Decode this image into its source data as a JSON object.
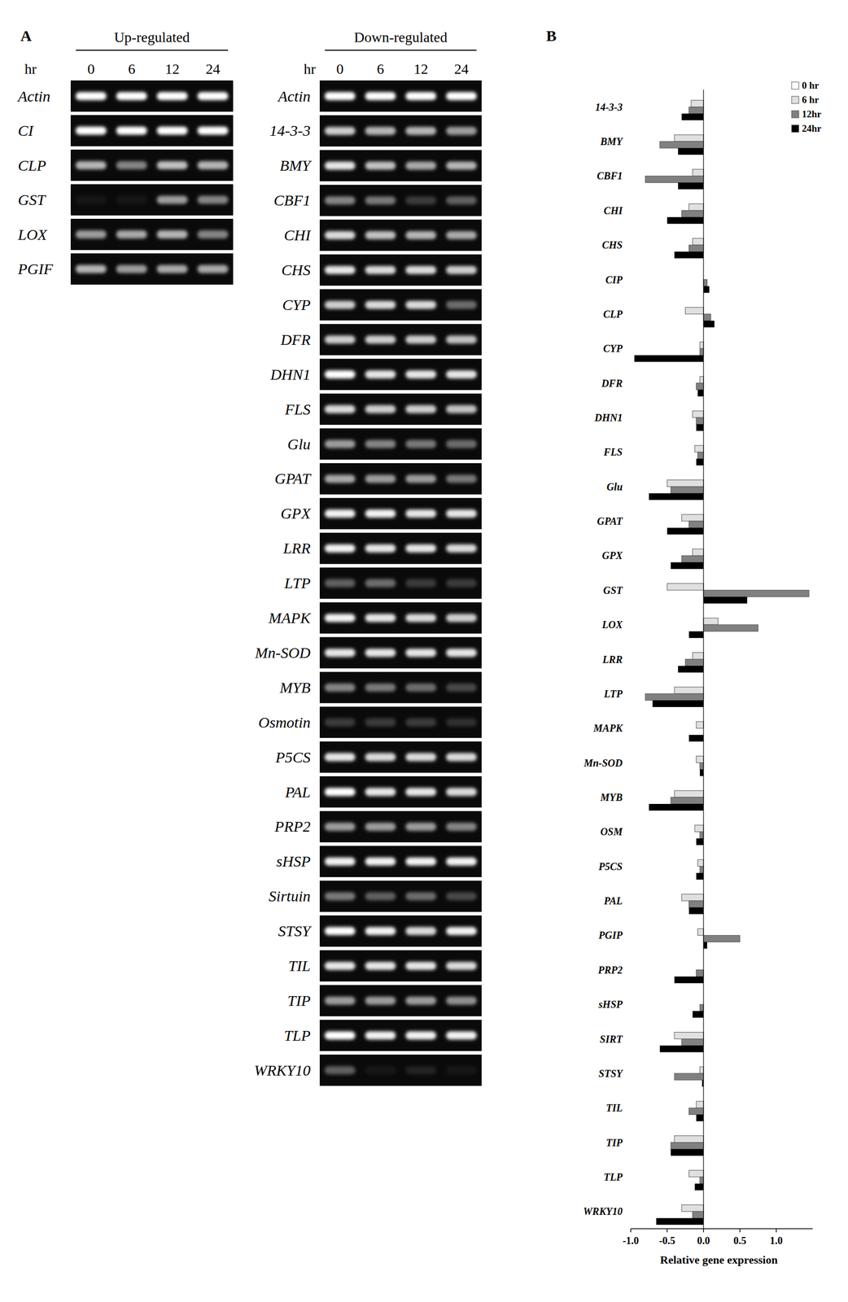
{
  "panel_a": {
    "letter": "A",
    "time_unit": "hr",
    "times": [
      0,
      6,
      12,
      24
    ],
    "groups": [
      {
        "title": "Up-regulated",
        "rows": [
          {
            "gene": "Actin",
            "bands": [
              1,
              1,
              1,
              1
            ]
          },
          {
            "gene": "CI",
            "bands": [
              1,
              1,
              1,
              1
            ]
          },
          {
            "gene": "CLP",
            "bands": [
              0.7,
              0.5,
              0.75,
              0.7
            ]
          },
          {
            "gene": "GST",
            "bands": [
              0.05,
              0.05,
              0.6,
              0.5
            ]
          },
          {
            "gene": "LOX",
            "bands": [
              0.6,
              0.65,
              0.7,
              0.5
            ]
          },
          {
            "gene": "PGIF",
            "bands": [
              0.7,
              0.6,
              0.65,
              0.65
            ]
          }
        ]
      },
      {
        "title": "Down-regulated",
        "rows": [
          {
            "gene": "Actin",
            "bands": [
              1,
              1,
              1,
              1
            ]
          },
          {
            "gene": "14-3-3",
            "bands": [
              0.8,
              0.7,
              0.7,
              0.6
            ]
          },
          {
            "gene": "BMY",
            "bands": [
              0.9,
              0.75,
              0.65,
              0.7
            ]
          },
          {
            "gene": "CBF1",
            "bands": [
              0.5,
              0.45,
              0.2,
              0.35
            ]
          },
          {
            "gene": "CHI",
            "bands": [
              0.85,
              0.75,
              0.7,
              0.65
            ]
          },
          {
            "gene": "CHS",
            "bands": [
              0.9,
              0.85,
              0.85,
              0.8
            ]
          },
          {
            "gene": "CYP",
            "bands": [
              0.8,
              0.85,
              0.85,
              0.4
            ]
          },
          {
            "gene": "DFR",
            "bands": [
              0.8,
              0.8,
              0.8,
              0.75
            ]
          },
          {
            "gene": "DHN1",
            "bands": [
              1,
              0.9,
              0.9,
              0.9
            ]
          },
          {
            "gene": "FLS",
            "bands": [
              0.85,
              0.8,
              0.8,
              0.75
            ]
          },
          {
            "gene": "Glu",
            "bands": [
              0.6,
              0.5,
              0.45,
              0.4
            ]
          },
          {
            "gene": "GPAT",
            "bands": [
              0.65,
              0.6,
              0.6,
              0.45
            ]
          },
          {
            "gene": "GPX",
            "bands": [
              0.95,
              0.95,
              0.9,
              0.9
            ]
          },
          {
            "gene": "LRR",
            "bands": [
              0.95,
              0.9,
              0.9,
              0.85
            ]
          },
          {
            "gene": "LTP",
            "bands": [
              0.35,
              0.4,
              0.2,
              0.2
            ]
          },
          {
            "gene": "MAPK",
            "bands": [
              0.95,
              0.9,
              0.85,
              0.8
            ]
          },
          {
            "gene": "Mn-SOD",
            "bands": [
              0.9,
              0.9,
              0.9,
              0.9
            ]
          },
          {
            "gene": "MYB",
            "bands": [
              0.5,
              0.45,
              0.4,
              0.25
            ]
          },
          {
            "gene": "Osmotin",
            "bands": [
              0.2,
              0.2,
              0.2,
              0.15
            ]
          },
          {
            "gene": "P5CS",
            "bands": [
              0.9,
              0.85,
              0.85,
              0.85
            ]
          },
          {
            "gene": "PAL",
            "bands": [
              1,
              0.9,
              0.9,
              0.85
            ]
          },
          {
            "gene": "PRP2",
            "bands": [
              0.6,
              0.6,
              0.6,
              0.5
            ]
          },
          {
            "gene": "sHSP",
            "bands": [
              0.95,
              0.95,
              0.95,
              0.95
            ]
          },
          {
            "gene": "Sirtuin",
            "bands": [
              0.45,
              0.35,
              0.4,
              0.25
            ]
          },
          {
            "gene": "STSY",
            "bands": [
              1,
              0.95,
              0.85,
              0.95
            ]
          },
          {
            "gene": "TIL",
            "bands": [
              0.9,
              0.9,
              0.9,
              0.85
            ]
          },
          {
            "gene": "TIP",
            "bands": [
              0.6,
              0.6,
              0.6,
              0.55
            ]
          },
          {
            "gene": "TLP",
            "bands": [
              1,
              0.95,
              0.95,
              0.95
            ]
          },
          {
            "gene": "WRKY10",
            "bands": [
              0.35,
              0.05,
              0.1,
              0.05
            ]
          }
        ]
      }
    ]
  },
  "panel_b": {
    "letter": "B"
  },
  "chart_data": {
    "type": "bar",
    "orientation": "horizontal",
    "categories": [
      "14-3-3",
      "BMY",
      "CBF1",
      "CHI",
      "CHS",
      "CIP",
      "CLP",
      "CYP",
      "DFR",
      "DHN1",
      "FLS",
      "Glu",
      "GPAT",
      "GPX",
      "GST",
      "LOX",
      "LRR",
      "LTP",
      "MAPK",
      "Mn-SOD",
      "MYB",
      "OSM",
      "P5CS",
      "PAL",
      "PGIP",
      "PRP2",
      "sHSP",
      "SIRT",
      "STSY",
      "TIL",
      "TIP",
      "TLP",
      "WRKY10"
    ],
    "series": [
      {
        "name": "0 hr",
        "color": "#ffffff",
        "values": [
          0,
          0,
          0,
          0,
          0,
          0,
          0,
          0,
          0,
          0,
          0,
          0,
          0,
          0,
          0,
          0,
          0,
          0,
          0,
          0,
          0,
          0,
          0,
          0,
          0,
          0,
          0,
          0,
          0,
          0,
          0,
          0,
          0
        ]
      },
      {
        "name": "6 hr",
        "color": "#e0e0e0",
        "values": [
          -0.17,
          -0.4,
          -0.15,
          -0.2,
          -0.15,
          0,
          -0.25,
          -0.05,
          -0.05,
          -0.15,
          -0.12,
          -0.5,
          -0.3,
          -0.15,
          -0.5,
          0.2,
          -0.15,
          -0.4,
          -0.1,
          -0.1,
          -0.4,
          -0.12,
          -0.08,
          -0.3,
          -0.08,
          0,
          0,
          -0.4,
          -0.05,
          -0.1,
          -0.4,
          -0.2,
          -0.3
        ]
      },
      {
        "name": "12hr",
        "color": "#808080",
        "values": [
          -0.2,
          -0.6,
          -0.8,
          -0.3,
          -0.2,
          0.05,
          0.1,
          -0.05,
          -0.1,
          -0.1,
          -0.08,
          -0.45,
          -0.2,
          -0.3,
          1.45,
          0.75,
          -0.25,
          -0.8,
          0,
          -0.05,
          -0.45,
          -0.05,
          -0.05,
          -0.2,
          0.5,
          -0.1,
          -0.05,
          -0.3,
          -0.4,
          -0.2,
          -0.45,
          -0.05,
          -0.15
        ]
      },
      {
        "name": "24hr",
        "color": "#000000",
        "values": [
          -0.3,
          -0.35,
          -0.35,
          -0.5,
          -0.4,
          0.08,
          0.15,
          -0.95,
          -0.08,
          -0.1,
          -0.1,
          -0.75,
          -0.5,
          -0.45,
          0.6,
          -0.2,
          -0.35,
          -0.7,
          -0.2,
          -0.05,
          -0.75,
          -0.1,
          -0.1,
          -0.2,
          0.05,
          -0.4,
          -0.15,
          -0.6,
          -0.02,
          -0.1,
          -0.45,
          -0.12,
          -0.65
        ]
      }
    ],
    "xlim": [
      -1.0,
      1.5
    ],
    "xticks": [
      {
        "value": -1,
        "label": "-1.0"
      },
      {
        "value": -0.5,
        "label": "-0.5"
      },
      {
        "value": 0,
        "label": "0.0"
      },
      0.5,
      {
        "value": 1,
        "label": "1.0"
      }
    ],
    "xlabel": "Relative gene expression",
    "legend": "top-right",
    "grid": false
  }
}
